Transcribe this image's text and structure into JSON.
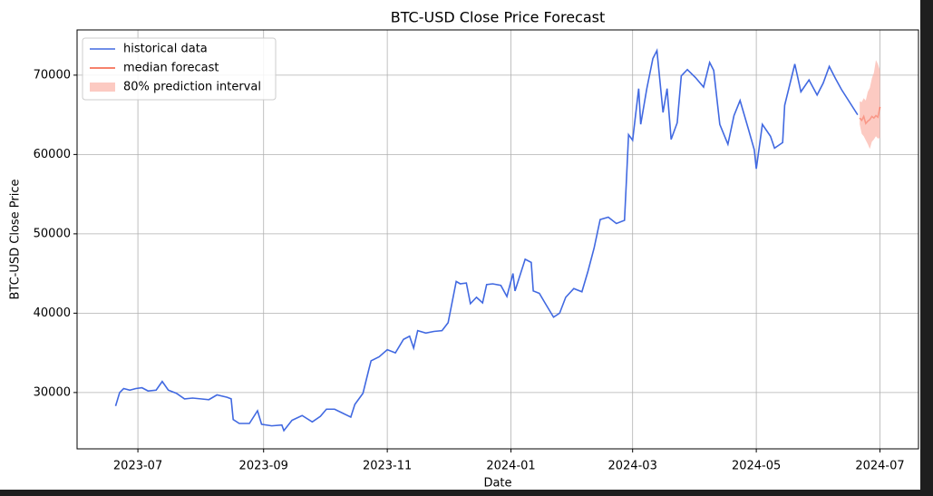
{
  "chart_data": {
    "type": "line",
    "title": "BTC-USD Close Price Forecast",
    "x_label": "Date",
    "y_label": "BTC-USD Close Price",
    "xlim": [
      "2023-06-01",
      "2024-07-20"
    ],
    "xticks": [
      {
        "value": "2023-07-01",
        "label": "2023-07"
      },
      {
        "value": "2023-09-01",
        "label": "2023-09"
      },
      {
        "value": "2023-11-01",
        "label": "2023-11"
      },
      {
        "value": "2024-01-01",
        "label": "2024-01"
      },
      {
        "value": "2024-03-01",
        "label": "2024-03"
      },
      {
        "value": "2024-05-01",
        "label": "2024-05"
      },
      {
        "value": "2024-07-01",
        "label": "2024-07"
      }
    ],
    "ylim": [
      22900,
      75700
    ],
    "yticks": [
      30000,
      40000,
      50000,
      60000,
      70000
    ],
    "grid": true,
    "legend": "upper left",
    "series": [
      {
        "name": "historical data",
        "color": "#4169e1",
        "x": [
          "2023-06-20",
          "2023-06-22",
          "2023-06-24",
          "2023-06-27",
          "2023-06-30",
          "2023-07-03",
          "2023-07-06",
          "2023-07-10",
          "2023-07-13",
          "2023-07-16",
          "2023-07-20",
          "2023-07-24",
          "2023-07-28",
          "2023-08-01",
          "2023-08-05",
          "2023-08-09",
          "2023-08-14",
          "2023-08-16",
          "2023-08-17",
          "2023-08-20",
          "2023-08-25",
          "2023-08-29",
          "2023-08-31",
          "2023-09-05",
          "2023-09-10",
          "2023-09-11",
          "2023-09-15",
          "2023-09-20",
          "2023-09-25",
          "2023-09-29",
          "2023-10-02",
          "2023-10-06",
          "2023-10-10",
          "2023-10-14",
          "2023-10-16",
          "2023-10-20",
          "2023-10-23",
          "2023-10-24",
          "2023-10-28",
          "2023-11-01",
          "2023-11-05",
          "2023-11-09",
          "2023-11-12",
          "2023-11-14",
          "2023-11-16",
          "2023-11-20",
          "2023-11-24",
          "2023-11-28",
          "2023-12-01",
          "2023-12-05",
          "2023-12-07",
          "2023-12-10",
          "2023-12-12",
          "2023-12-15",
          "2023-12-18",
          "2023-12-20",
          "2023-12-23",
          "2023-12-27",
          "2023-12-30",
          "2024-01-02",
          "2024-01-03",
          "2024-01-08",
          "2024-01-11",
          "2024-01-12",
          "2024-01-15",
          "2024-01-18",
          "2024-01-22",
          "2024-01-25",
          "2024-01-28",
          "2024-02-01",
          "2024-02-05",
          "2024-02-08",
          "2024-02-11",
          "2024-02-14",
          "2024-02-18",
          "2024-02-22",
          "2024-02-26",
          "2024-02-27",
          "2024-02-28",
          "2024-03-01",
          "2024-03-04",
          "2024-03-05",
          "2024-03-08",
          "2024-03-11",
          "2024-03-13",
          "2024-03-16",
          "2024-03-18",
          "2024-03-20",
          "2024-03-23",
          "2024-03-25",
          "2024-03-28",
          "2024-04-01",
          "2024-04-05",
          "2024-04-08",
          "2024-04-10",
          "2024-04-13",
          "2024-04-17",
          "2024-04-20",
          "2024-04-23",
          "2024-04-27",
          "2024-04-30",
          "2024-05-01",
          "2024-05-04",
          "2024-05-08",
          "2024-05-10",
          "2024-05-14",
          "2024-05-15",
          "2024-05-20",
          "2024-05-23",
          "2024-05-27",
          "2024-05-31",
          "2024-06-03",
          "2024-06-06",
          "2024-06-09",
          "2024-06-12",
          "2024-06-16",
          "2024-06-20"
        ],
        "values": [
          28300,
          30000,
          30500,
          30300,
          30500,
          30600,
          30200,
          30300,
          31400,
          30300,
          29900,
          29200,
          29300,
          29200,
          29100,
          29700,
          29400,
          29200,
          26600,
          26100,
          26100,
          27700,
          26000,
          25800,
          25900,
          25200,
          26500,
          27100,
          26300,
          27000,
          27900,
          27900,
          27400,
          26900,
          28500,
          29900,
          33000,
          34000,
          34500,
          35400,
          35000,
          36700,
          37100,
          35600,
          37800,
          37500,
          37700,
          37800,
          38800,
          44000,
          43700,
          43800,
          41200,
          42000,
          41300,
          43600,
          43700,
          43500,
          42100,
          45000,
          42800,
          46800,
          46400,
          42800,
          42500,
          41200,
          39500,
          40000,
          42000,
          43100,
          42700,
          45300,
          48200,
          51800,
          52100,
          51300,
          51700,
          57000,
          62500,
          61800,
          68300,
          63800,
          68300,
          72100,
          73100,
          65300,
          68300,
          61900,
          64000,
          69900,
          70700,
          69700,
          68500,
          71600,
          70600,
          63800,
          61300,
          64900,
          66800,
          63300,
          60600,
          58200,
          63800,
          62300,
          60800,
          61500,
          66200,
          71400,
          67900,
          69400,
          67500,
          69000,
          71100,
          69600,
          68200,
          66600,
          65000
        ]
      },
      {
        "name": "median forecast",
        "color": "#f4583c",
        "x": [
          "2024-06-21",
          "2024-06-22",
          "2024-06-23",
          "2024-06-24",
          "2024-06-25",
          "2024-06-26",
          "2024-06-27",
          "2024-06-28",
          "2024-06-29",
          "2024-06-30",
          "2024-07-01"
        ],
        "values": [
          64600,
          64300,
          64800,
          63900,
          64200,
          64400,
          64800,
          64600,
          64900,
          64700,
          66000
        ]
      },
      {
        "name": "80% prediction interval",
        "color": "#fbb4a8",
        "x": [
          "2024-06-21",
          "2024-06-22",
          "2024-06-23",
          "2024-06-24",
          "2024-06-25",
          "2024-06-26",
          "2024-06-27",
          "2024-06-28",
          "2024-06-29",
          "2024-06-30",
          "2024-07-01"
        ],
        "lower": [
          63800,
          62600,
          62300,
          61800,
          61300,
          60700,
          61600,
          61900,
          62300,
          62000,
          62100
        ],
        "upper": [
          66700,
          66600,
          67100,
          66800,
          67900,
          68400,
          69600,
          70300,
          71900,
          71400,
          70600
        ]
      }
    ]
  }
}
